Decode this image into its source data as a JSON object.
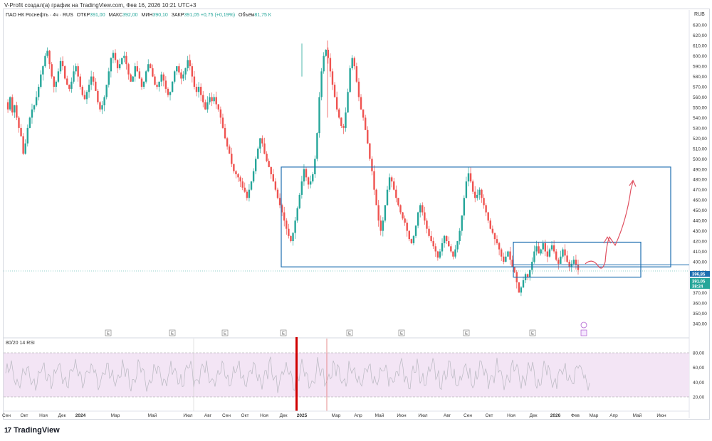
{
  "caption": "V-Profit создал(а) график на TradingView.com, Фев 16, 2026 10:21 UTC+3",
  "legend": {
    "symbol": "ПАО НК Роснефть · 4ч · RUS",
    "open_label": "ОТКР",
    "open": "391,00",
    "high_label": "МАКС",
    "high": "392,00",
    "low_label": "МИН",
    "low": "390,10",
    "close_label": "ЗАКР",
    "close": "391,05",
    "change": "+0,75 (+0,19%)",
    "volume_label": "Объём",
    "volume": "81,75 К"
  },
  "rsi_label": "80/20 14 RSI",
  "footer": {
    "brand": "TradingView",
    "mark": "17"
  },
  "chart_data": [
    {
      "type": "candlestick",
      "currency_label": "RUB",
      "y_ticks": [
        "630,00",
        "620,00",
        "610,00",
        "600,00",
        "590,00",
        "580,00",
        "570,00",
        "560,00",
        "550,00",
        "540,00",
        "530,00",
        "520,00",
        "510,00",
        "500,00",
        "490,00",
        "480,00",
        "470,00",
        "460,00",
        "450,00",
        "440,00",
        "430,00",
        "420,00",
        "410,00",
        "400,00",
        "390,00",
        "380,00",
        "370,00",
        "360,00",
        "350,00",
        "340,00"
      ],
      "ylim": [
        335,
        635
      ],
      "price_tags": [
        {
          "value": "396,85",
          "color": "#1f6fb0"
        },
        {
          "value": "391,05",
          "color": "#26a69a"
        },
        {
          "value": "38:24",
          "color": "#26a69a"
        }
      ],
      "x_ticks": [
        "Сен",
        "Окт",
        "Ноя",
        "Дек",
        "2024",
        "Мар",
        "Май",
        "Июл",
        "Авг",
        "Сен",
        "Окт",
        "Ноя",
        "Дек",
        "2025",
        "Мар",
        "Апр",
        "Май",
        "Июн",
        "Июл",
        "Авг",
        "Сен",
        "Окт",
        "Ноя",
        "Дек",
        "2026",
        "Фев",
        "Мар",
        "Апр",
        "Май",
        "Июн"
      ],
      "price_path": [
        [
          0,
          555
        ],
        [
          1,
          548
        ],
        [
          2,
          560
        ],
        [
          3,
          545
        ],
        [
          4,
          552
        ],
        [
          5,
          540
        ],
        [
          6,
          530
        ],
        [
          7,
          522
        ],
        [
          8,
          505
        ],
        [
          9,
          515
        ],
        [
          10,
          530
        ],
        [
          11,
          540
        ],
        [
          12,
          548
        ],
        [
          13,
          552
        ],
        [
          14,
          560
        ],
        [
          15,
          570
        ],
        [
          16,
          582
        ],
        [
          17,
          590
        ],
        [
          18,
          600
        ],
        [
          19,
          605
        ],
        [
          20,
          592
        ],
        [
          21,
          580
        ],
        [
          22,
          570
        ],
        [
          23,
          575
        ],
        [
          24,
          585
        ],
        [
          25,
          595
        ],
        [
          26,
          590
        ],
        [
          27,
          578
        ],
        [
          28,
          572
        ],
        [
          29,
          568
        ],
        [
          30,
          575
        ],
        [
          31,
          585
        ],
        [
          32,
          590
        ],
        [
          33,
          580
        ],
        [
          34,
          570
        ],
        [
          35,
          562
        ],
        [
          36,
          558
        ],
        [
          37,
          565
        ],
        [
          38,
          572
        ],
        [
          39,
          580
        ],
        [
          40,
          575
        ],
        [
          41,
          566
        ],
        [
          42,
          555
        ],
        [
          43,
          548
        ],
        [
          44,
          552
        ],
        [
          45,
          560
        ],
        [
          46,
          572
        ],
        [
          47,
          585
        ],
        [
          48,
          598
        ],
        [
          49,
          603
        ],
        [
          50,
          596
        ],
        [
          51,
          588
        ],
        [
          52,
          592
        ],
        [
          53,
          598
        ],
        [
          54,
          600
        ],
        [
          55,
          592
        ],
        [
          56,
          582
        ],
        [
          57,
          575
        ],
        [
          58,
          580
        ],
        [
          59,
          590
        ],
        [
          60,
          585
        ],
        [
          61,
          578
        ],
        [
          62,
          570
        ],
        [
          63,
          575
        ],
        [
          64,
          585
        ],
        [
          65,
          592
        ],
        [
          66,
          588
        ],
        [
          67,
          580
        ],
        [
          68,
          572
        ],
        [
          69,
          570
        ],
        [
          70,
          575
        ],
        [
          71,
          582
        ],
        [
          72,
          576
        ],
        [
          73,
          568
        ],
        [
          74,
          562
        ],
        [
          75,
          565
        ],
        [
          76,
          575
        ],
        [
          77,
          585
        ],
        [
          78,
          590
        ],
        [
          79,
          584
        ],
        [
          80,
          578
        ],
        [
          81,
          582
        ],
        [
          82,
          588
        ],
        [
          83,
          596
        ],
        [
          84,
          590
        ],
        [
          85,
          580
        ],
        [
          86,
          570
        ],
        [
          87,
          565
        ],
        [
          88,
          570
        ],
        [
          89,
          562
        ],
        [
          90,
          555
        ],
        [
          91,
          548
        ],
        [
          92,
          555
        ],
        [
          93,
          560
        ],
        [
          94,
          556
        ],
        [
          95,
          560
        ],
        [
          96,
          553
        ],
        [
          97,
          548
        ],
        [
          98,
          540
        ],
        [
          99,
          530
        ],
        [
          100,
          520
        ],
        [
          101,
          512
        ],
        [
          102,
          505
        ],
        [
          103,
          495
        ],
        [
          104,
          488
        ],
        [
          105,
          485
        ],
        [
          106,
          482
        ],
        [
          107,
          478
        ],
        [
          108,
          472
        ],
        [
          109,
          468
        ],
        [
          110,
          462
        ],
        [
          111,
          470
        ],
        [
          112,
          478
        ],
        [
          113,
          488
        ],
        [
          114,
          500
        ],
        [
          115,
          510
        ],
        [
          116,
          520
        ],
        [
          117,
          515
        ],
        [
          118,
          505
        ],
        [
          119,
          498
        ],
        [
          120,
          492
        ],
        [
          121,
          485
        ],
        [
          122,
          478
        ],
        [
          123,
          470
        ],
        [
          124,
          462
        ],
        [
          125,
          455
        ],
        [
          126,
          448
        ],
        [
          127,
          440
        ],
        [
          128,
          432
        ],
        [
          129,
          425
        ],
        [
          130,
          420
        ],
        [
          131,
          428
        ],
        [
          132,
          440
        ],
        [
          133,
          452
        ],
        [
          134,
          465
        ],
        [
          135,
          478
        ],
        [
          136,
          490
        ],
        [
          137,
          482
        ],
        [
          138,
          475
        ],
        [
          139,
          478
        ],
        [
          140,
          485
        ],
        [
          141,
          500
        ],
        [
          142,
          525
        ],
        [
          143,
          560
        ],
        [
          144,
          585
        ],
        [
          145,
          600
        ],
        [
          146,
          606
        ],
        [
          147,
          598
        ],
        [
          148,
          585
        ],
        [
          149,
          572
        ],
        [
          150,
          560
        ],
        [
          151,
          548
        ],
        [
          152,
          540
        ],
        [
          153,
          532
        ],
        [
          154,
          530
        ],
        [
          155,
          545
        ],
        [
          156,
          565
        ],
        [
          157,
          588
        ],
        [
          158,
          598
        ],
        [
          159,
          590
        ],
        [
          160,
          575
        ],
        [
          161,
          560
        ],
        [
          162,
          548
        ],
        [
          163,
          540
        ],
        [
          164,
          528
        ],
        [
          165,
          515
        ],
        [
          166,
          500
        ],
        [
          167,
          488
        ],
        [
          168,
          470
        ],
        [
          169,
          455
        ],
        [
          170,
          440
        ],
        [
          171,
          430
        ],
        [
          172,
          440
        ],
        [
          173,
          455
        ],
        [
          174,
          470
        ],
        [
          175,
          482
        ],
        [
          176,
          478
        ],
        [
          177,
          470
        ],
        [
          178,
          462
        ],
        [
          179,
          455
        ],
        [
          180,
          448
        ],
        [
          181,
          442
        ],
        [
          182,
          438
        ],
        [
          183,
          430
        ],
        [
          184,
          422
        ],
        [
          185,
          418
        ],
        [
          186,
          425
        ],
        [
          187,
          435
        ],
        [
          188,
          448
        ],
        [
          189,
          455
        ],
        [
          190,
          448
        ],
        [
          191,
          440
        ],
        [
          192,
          432
        ],
        [
          193,
          425
        ],
        [
          194,
          420
        ],
        [
          195,
          415
        ],
        [
          196,
          410
        ],
        [
          197,
          404
        ],
        [
          198,
          410
        ],
        [
          199,
          418
        ],
        [
          200,
          425
        ],
        [
          201,
          420
        ],
        [
          202,
          415
        ],
        [
          203,
          410
        ],
        [
          204,
          405
        ],
        [
          205,
          412
        ],
        [
          206,
          420
        ],
        [
          207,
          430
        ],
        [
          208,
          445
        ],
        [
          209,
          462
        ],
        [
          210,
          478
        ],
        [
          211,
          486
        ],
        [
          212,
          478
        ],
        [
          213,
          468
        ],
        [
          214,
          462
        ],
        [
          215,
          465
        ],
        [
          216,
          470
        ],
        [
          217,
          462
        ],
        [
          218,
          455
        ],
        [
          219,
          448
        ],
        [
          220,
          440
        ],
        [
          221,
          432
        ],
        [
          222,
          428
        ],
        [
          223,
          422
        ],
        [
          224,
          418
        ],
        [
          225,
          412
        ],
        [
          226,
          405
        ],
        [
          227,
          400
        ],
        [
          228,
          405
        ],
        [
          229,
          410
        ],
        [
          230,
          402
        ],
        [
          231,
          395
        ],
        [
          232,
          390
        ],
        [
          233,
          380
        ],
        [
          234,
          370
        ],
        [
          235,
          375
        ],
        [
          236,
          382
        ],
        [
          237,
          388
        ],
        [
          238,
          385
        ],
        [
          239,
          392
        ],
        [
          240,
          400
        ],
        [
          241,
          410
        ],
        [
          242,
          415
        ],
        [
          243,
          408
        ],
        [
          244,
          412
        ],
        [
          245,
          418
        ],
        [
          246,
          410
        ],
        [
          247,
          405
        ],
        [
          248,
          412
        ],
        [
          249,
          416
        ],
        [
          250,
          410
        ],
        [
          251,
          402
        ],
        [
          252,
          398
        ],
        [
          253,
          405
        ],
        [
          254,
          412
        ],
        [
          255,
          406
        ],
        [
          256,
          400
        ],
        [
          257,
          395
        ],
        [
          258,
          398
        ],
        [
          259,
          402
        ],
        [
          260,
          397
        ],
        [
          261,
          392
        ]
      ],
      "rsi": {
        "levels": [
          80,
          60,
          40,
          20
        ],
        "band": [
          20,
          80
        ]
      }
    }
  ],
  "annotations": {
    "big_box": "consolidation range",
    "small_box": "current range",
    "projection": "upward arrow"
  }
}
